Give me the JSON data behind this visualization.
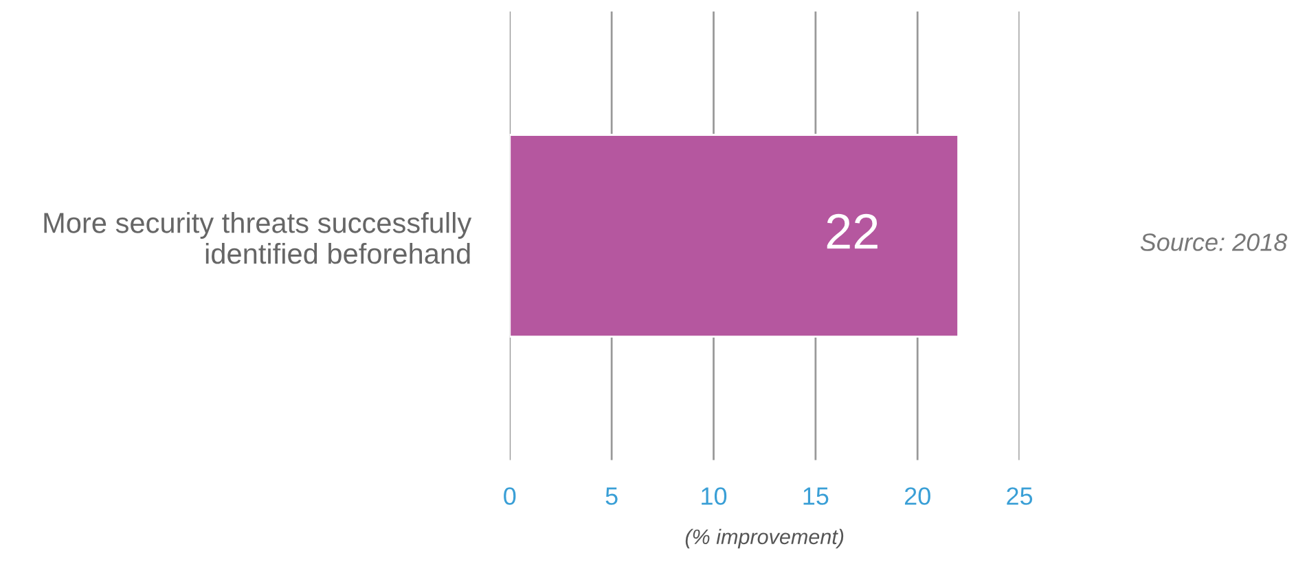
{
  "chart_data": {
    "type": "bar",
    "orientation": "horizontal",
    "categories": [
      "More security threats successfully\nidentified beforehand"
    ],
    "values": [
      22
    ],
    "color": "#b5579f",
    "xlim": [
      0,
      25
    ],
    "xticks": [
      0,
      5,
      10,
      15,
      20,
      25
    ],
    "grid": "x",
    "data_labels": true,
    "xlabel": "(% improvement)",
    "annotations": [
      "Source: 2018"
    ]
  }
}
